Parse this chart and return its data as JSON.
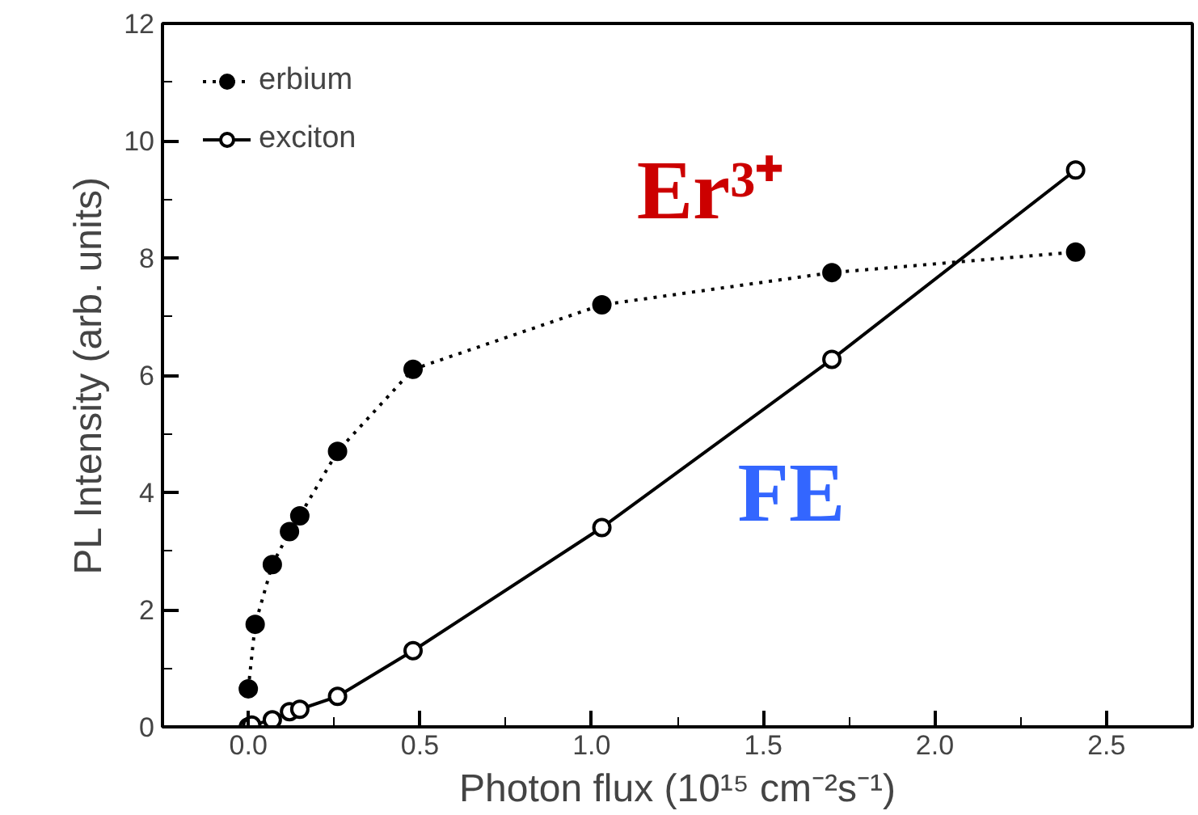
{
  "chart_data": {
    "type": "line",
    "xlabel": "Photon flux (10¹⁵ cm⁻²s⁻¹)",
    "ylabel": "PL Intensity (arb. units)",
    "xlim": [
      -0.25,
      2.75
    ],
    "ylim": [
      0,
      12
    ],
    "xticks": [
      {
        "value": 0,
        "label": "0.0"
      },
      {
        "value": 0.25,
        "label": null
      },
      {
        "value": 0.5,
        "label": "0.5"
      },
      {
        "value": 0.75,
        "label": null
      },
      {
        "value": 1,
        "label": "1.0"
      },
      {
        "value": 1.25,
        "label": null
      },
      {
        "value": 1.5,
        "label": "1.5"
      },
      {
        "value": 1.75,
        "label": null
      },
      {
        "value": 2,
        "label": "2.0"
      },
      {
        "value": 2.25,
        "label": null
      },
      {
        "value": 2.5,
        "label": "2.5"
      }
    ],
    "yticks": [
      0,
      {
        "value": 1,
        "label": null
      },
      2,
      {
        "value": 3,
        "label": null
      },
      4,
      {
        "value": 5,
        "label": null
      },
      6,
      {
        "value": 7,
        "label": null
      },
      8,
      {
        "value": 9,
        "label": null
      },
      10,
      {
        "value": 11,
        "label": null
      },
      12
    ],
    "grid": false,
    "legend": "top left",
    "marker": "circle",
    "series": [
      {
        "name": "erbium",
        "color": "#000000",
        "line_style": "dotted",
        "x": [
          0,
          0.02,
          0.07,
          0.12,
          0.15,
          0.26,
          0.48,
          1.03,
          1.7,
          2.41
        ],
        "values": [
          0.65,
          1.75,
          2.77,
          3.33,
          3.6,
          4.7,
          6.1,
          7.2,
          7.75,
          8.1
        ]
      },
      {
        "name": "exciton",
        "color": "#000000",
        "line_style": "solid",
        "x": [
          0,
          0.01,
          0.07,
          0.12,
          0.15,
          0.26,
          0.48,
          1.03,
          1.7,
          2.41
        ],
        "values": [
          0,
          0.03,
          0.12,
          0.26,
          0.3,
          0.52,
          1.3,
          3.4,
          6.27,
          9.5
        ]
      }
    ],
    "annotations": [
      "Er³⁺",
      "FE"
    ]
  }
}
